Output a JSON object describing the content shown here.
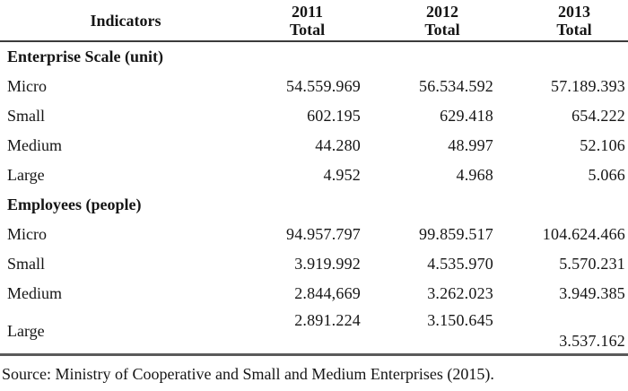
{
  "table": {
    "header": {
      "indicators_label": "Indicators",
      "columns": [
        {
          "year": "2011",
          "sub": "Total"
        },
        {
          "year": "2012",
          "sub": "Total"
        },
        {
          "year": "2013",
          "sub": "Total"
        }
      ]
    },
    "sections": [
      {
        "title": "Enterprise Scale (unit)",
        "rows": [
          {
            "label": "Micro",
            "values": [
              "54.559.969",
              "56.534.592",
              "57.189.393"
            ]
          },
          {
            "label": "Small",
            "values": [
              "602.195",
              "629.418",
              "654.222"
            ]
          },
          {
            "label": "Medium",
            "values": [
              "44.280",
              "48.997",
              "52.106"
            ]
          },
          {
            "label": "Large",
            "values": [
              "4.952",
              "4.968",
              "5.066"
            ]
          }
        ]
      },
      {
        "title": "Employees (people)",
        "rows": [
          {
            "label": "Micro",
            "values": [
              "94.957.797",
              "99.859.517",
              "104.624.466"
            ]
          },
          {
            "label": "Small",
            "values": [
              "3.919.992",
              "4.535.970",
              "5.570.231"
            ]
          },
          {
            "label": "Medium",
            "values": [
              "2.844,669",
              "3.262.023",
              "3.949.385"
            ]
          },
          {
            "label": "Large",
            "values": [
              "2.891.224",
              "3.150.645",
              "3.537.162"
            ]
          }
        ]
      }
    ]
  },
  "source_note": "Source: Ministry of Cooperative and Small and Medium Enterprises (2015).",
  "colors": {
    "text": "#151515",
    "header_rule": "#3c3c3c",
    "bottom_rule": "#5a5a5a"
  }
}
